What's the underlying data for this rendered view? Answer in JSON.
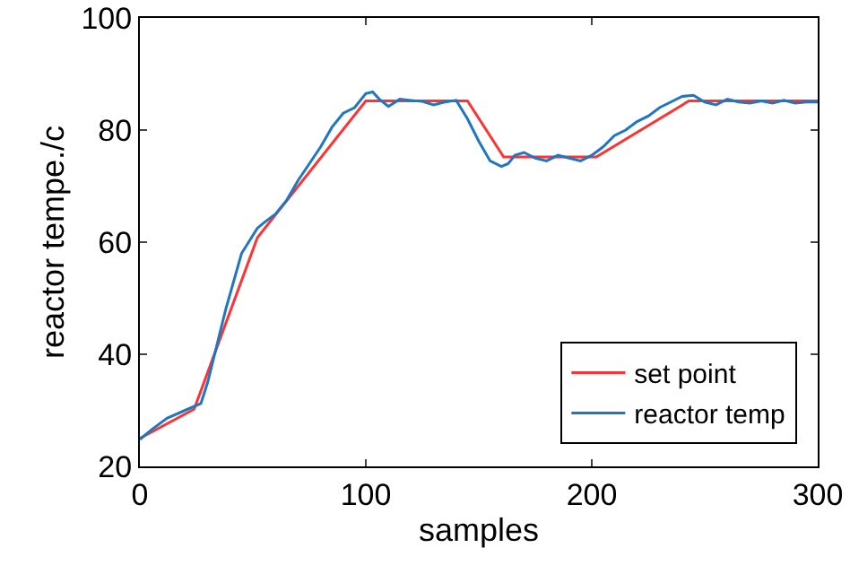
{
  "chart_data": {
    "type": "line",
    "xlabel": "samples",
    "ylabel": "reactor tempe./c",
    "xlim": [
      0,
      300
    ],
    "ylim": [
      20,
      100
    ],
    "xticks": [
      0,
      100,
      200,
      300
    ],
    "yticks": [
      20,
      40,
      60,
      80,
      100
    ],
    "grid": false,
    "legend": "bottom right",
    "line_style": "solid",
    "marker": "none",
    "series": [
      {
        "name": "set point",
        "color": "#ff3333",
        "x": [
          0,
          24,
          52,
          100,
          145,
          161,
          202,
          243,
          300
        ],
        "values": [
          25,
          30.2,
          60.8,
          85.2,
          85.2,
          75.2,
          75.2,
          85.2,
          85.2
        ]
      },
      {
        "name": "reactor temp",
        "color": "#1f77c4",
        "x": [
          0,
          5,
          12,
          20,
          27,
          30,
          38,
          45,
          52,
          55,
          60,
          65,
          70,
          75,
          80,
          85,
          90,
          95,
          100,
          103,
          106,
          110,
          115,
          120,
          125,
          130,
          135,
          140,
          145,
          150,
          155,
          160,
          163,
          166,
          170,
          175,
          180,
          185,
          190,
          195,
          200,
          205,
          210,
          215,
          220,
          225,
          230,
          235,
          240,
          245,
          250,
          255,
          260,
          265,
          270,
          275,
          280,
          285,
          290,
          295,
          300
        ],
        "values": [
          24.8,
          26.5,
          28.6,
          30,
          31.2,
          35,
          48,
          58,
          62.5,
          63.5,
          65,
          67.5,
          71,
          74,
          77,
          80.5,
          83,
          84,
          86.5,
          86.8,
          85.5,
          84.2,
          85.5,
          85.3,
          85.1,
          84.5,
          85,
          85.3,
          82,
          78,
          74.5,
          73.5,
          74,
          75.5,
          76,
          75,
          74.5,
          75.5,
          75,
          74.5,
          75.5,
          77,
          79,
          80,
          81.5,
          82.5,
          84,
          85,
          86,
          86.2,
          85,
          84.5,
          85.5,
          85,
          84.8,
          85.2,
          84.8,
          85.3,
          84.8,
          85,
          85
        ]
      }
    ]
  }
}
